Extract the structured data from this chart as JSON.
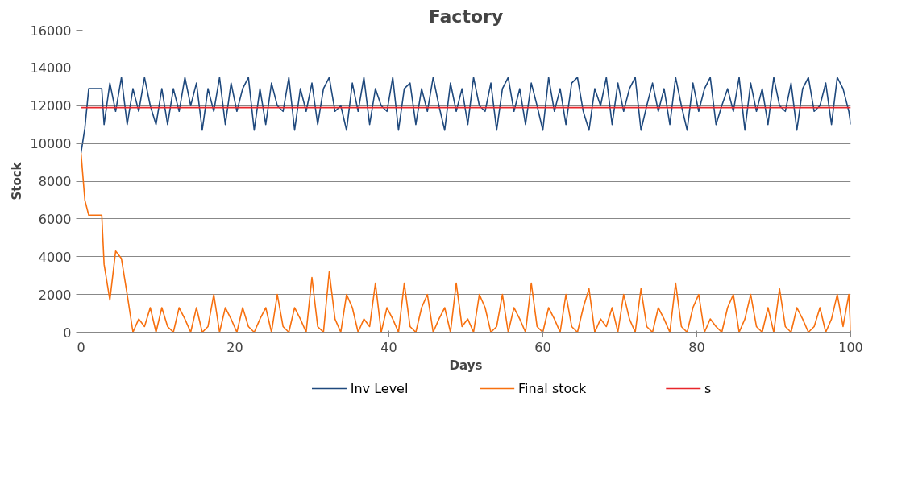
{
  "chart_data": {
    "type": "line",
    "title": "Factory",
    "xlabel": "Days",
    "ylabel": "Stock",
    "xlim": [
      0,
      100
    ],
    "xticks": [
      0,
      20,
      40,
      60,
      80,
      100
    ],
    "ylim": [
      0,
      16000
    ],
    "yticks": [
      0,
      2000,
      4000,
      6000,
      8000,
      10000,
      12000,
      14000,
      16000
    ],
    "grid": "y",
    "legend": "bottom",
    "marker": "none",
    "line_style": "solid",
    "x": [
      0,
      0.5,
      1,
      2.7,
      3,
      3.75,
      4.5,
      5.25,
      6,
      6.75,
      7.5,
      8.25,
      9,
      9.75,
      10.5,
      11.25,
      12,
      12.75,
      13.5,
      14.25,
      15,
      15.75,
      16.5,
      17.25,
      18,
      18.75,
      19.5,
      20.25,
      21,
      21.75,
      22.5,
      23.25,
      24,
      24.75,
      25.5,
      26.25,
      27,
      27.75,
      28.5,
      29.25,
      30,
      30.75,
      31.5,
      32.25,
      33,
      33.75,
      34.5,
      35.25,
      36,
      36.75,
      37.5,
      38.25,
      39,
      39.75,
      40.5,
      41.25,
      42,
      42.75,
      43.5,
      44.25,
      45,
      45.75,
      46.5,
      47.25,
      48,
      48.75,
      49.5,
      50.25,
      51,
      51.75,
      52.5,
      53.25,
      54,
      54.75,
      55.5,
      56.25,
      57,
      57.75,
      58.5,
      59.25,
      60,
      60.75,
      61.5,
      62.25,
      63,
      63.75,
      64.5,
      65.25,
      66,
      66.75,
      67.5,
      68.25,
      69,
      69.75,
      70.5,
      71.25,
      72,
      72.75,
      73.5,
      74.25,
      75,
      75.75,
      76.5,
      77.25,
      78,
      78.75,
      79.5,
      80.25,
      81,
      81.75,
      82.5,
      83.25,
      84,
      84.75,
      85.5,
      86.25,
      87,
      87.75,
      88.5,
      89.25,
      90,
      90.75,
      91.5,
      92.25,
      93,
      93.75,
      94.5,
      95.25,
      96,
      96.75,
      97.5,
      98.25,
      99,
      99.75,
      100
    ],
    "series": [
      {
        "name": "Inv Level",
        "color": "#1f497d",
        "values": [
          9500,
          10800,
          12900,
          12900,
          11000,
          13200,
          11700,
          13500,
          11000,
          12900,
          11700,
          13500,
          12000,
          11000,
          12900,
          11000,
          12900,
          11700,
          13500,
          12000,
          13200,
          10700,
          12900,
          11700,
          13500,
          11000,
          13200,
          11700,
          12900,
          13500,
          10700,
          12900,
          11000,
          13200,
          12000,
          11700,
          13500,
          10700,
          12900,
          11700,
          13200,
          11000,
          12900,
          13500,
          11700,
          12000,
          10700,
          13200,
          11700,
          13500,
          11000,
          12900,
          12000,
          11700,
          13500,
          10700,
          12900,
          13200,
          11000,
          12900,
          11700,
          13500,
          12000,
          10700,
          13200,
          11700,
          12900,
          11000,
          13500,
          12000,
          11700,
          13200,
          10700,
          12900,
          13500,
          11700,
          12900,
          11000,
          13200,
          12000,
          10700,
          13500,
          11700,
          12900,
          11000,
          13200,
          13500,
          11700,
          10700,
          12900,
          12000,
          13500,
          11000,
          13200,
          11700,
          12900,
          13500,
          10700,
          12000,
          13200,
          11700,
          12900,
          11000,
          13500,
          12000,
          10700,
          13200,
          11700,
          12900,
          13500,
          11000,
          12000,
          12900,
          11700,
          13500,
          10700,
          13200,
          11700,
          12900,
          11000,
          13500,
          12000,
          11700,
          13200,
          10700,
          12900,
          13500,
          11700,
          12000,
          13200,
          11000,
          13500,
          12900,
          11700,
          11000
        ]
      },
      {
        "name": "Final stock",
        "color": "#f7700f",
        "values": [
          9500,
          7000,
          6200,
          6200,
          3600,
          1700,
          4300,
          3900,
          2000,
          0,
          700,
          300,
          1300,
          0,
          1300,
          300,
          0,
          1300,
          700,
          0,
          1300,
          0,
          300,
          2000,
          0,
          1300,
          700,
          0,
          1300,
          300,
          0,
          700,
          1300,
          0,
          2000,
          300,
          0,
          1300,
          700,
          0,
          2900,
          300,
          0,
          3200,
          700,
          0,
          2000,
          1300,
          0,
          700,
          300,
          2600,
          0,
          1300,
          700,
          0,
          2600,
          300,
          0,
          1300,
          2000,
          0,
          700,
          1300,
          0,
          2600,
          300,
          700,
          0,
          2000,
          1300,
          0,
          300,
          2000,
          0,
          1300,
          700,
          0,
          2600,
          300,
          0,
          1300,
          700,
          0,
          2000,
          300,
          0,
          1300,
          2300,
          0,
          700,
          300,
          1300,
          0,
          2000,
          700,
          0,
          2300,
          300,
          0,
          1300,
          700,
          0,
          2600,
          300,
          0,
          1300,
          2000,
          0,
          700,
          300,
          0,
          1300,
          2000,
          0,
          700,
          2000,
          300,
          0,
          1300,
          0,
          2300,
          300,
          0,
          1300,
          700,
          0,
          300,
          1300,
          0,
          700,
          2000,
          300,
          2000,
          0
        ]
      },
      {
        "name": "s",
        "color": "#e8262b",
        "x": [
          0,
          100
        ],
        "values": [
          11900,
          11900
        ]
      }
    ]
  }
}
